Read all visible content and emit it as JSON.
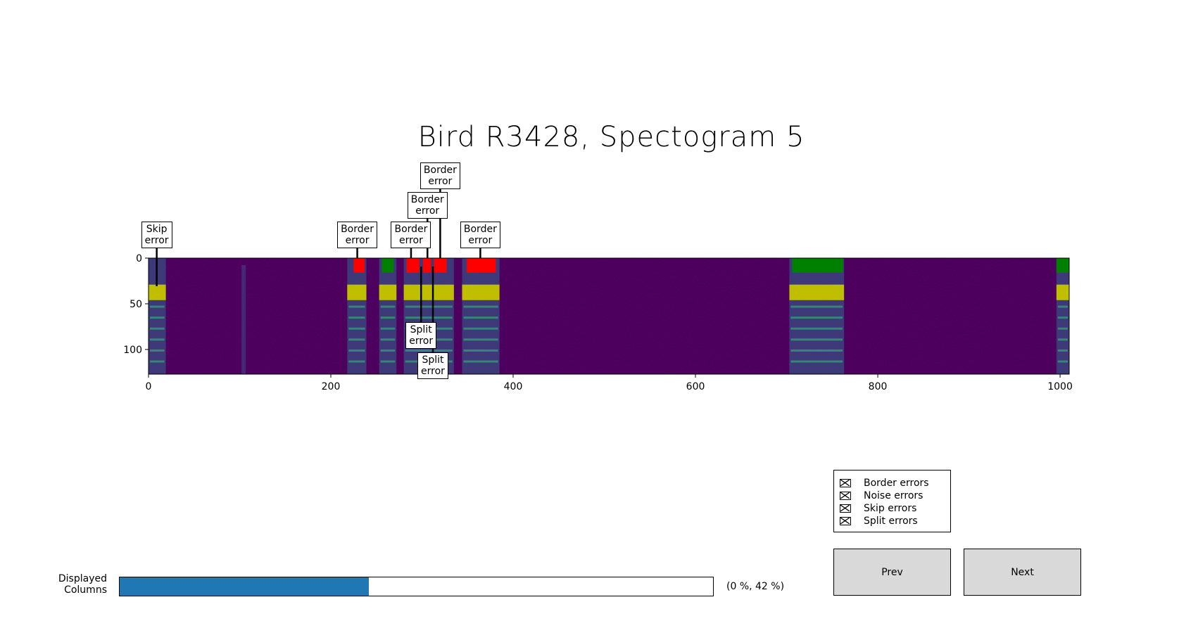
{
  "title": "Bird R3428, Spectogram 5",
  "colors": {
    "border_error": "#ff0000",
    "correct": "#008000",
    "segment": "#bfbf00",
    "background_low": "#440154",
    "highlight": "#35b779",
    "slider_fill": "#1f77b4"
  },
  "axes": {
    "x_ticks": [
      "0",
      "200",
      "400",
      "600",
      "800",
      "1000"
    ],
    "y_ticks": [
      "0",
      "50",
      "100"
    ],
    "xlim": [
      0,
      1010
    ],
    "ylim": [
      127,
      0
    ]
  },
  "chart_data": {
    "type": "heatmap",
    "title": "Bird R3428, Spectogram 5",
    "xlim": [
      0,
      1010
    ],
    "ylim": [
      127,
      0
    ],
    "label_bars": [
      {
        "start": 225,
        "end": 237,
        "status": "border_error"
      },
      {
        "start": 256,
        "end": 269,
        "status": "correct"
      },
      {
        "start": 283,
        "end": 297,
        "status": "border_error"
      },
      {
        "start": 301,
        "end": 310,
        "status": "border_error"
      },
      {
        "start": 313,
        "end": 327,
        "status": "border_error"
      },
      {
        "start": 349,
        "end": 381,
        "status": "border_error"
      },
      {
        "start": 706,
        "end": 762,
        "status": "correct"
      },
      {
        "start": 996,
        "end": 1010,
        "status": "correct"
      }
    ],
    "segment_bars": [
      {
        "start": 0,
        "end": 19
      },
      {
        "start": 218,
        "end": 239
      },
      {
        "start": 253,
        "end": 272
      },
      {
        "start": 280,
        "end": 335
      },
      {
        "start": 344,
        "end": 385
      },
      {
        "start": 703,
        "end": 763
      },
      {
        "start": 996,
        "end": 1010
      }
    ]
  },
  "annotations": [
    {
      "text": "Skip\nerror",
      "x": 9,
      "side": "top",
      "level": 0
    },
    {
      "text": "Border\nerror",
      "x": 229,
      "side": "top",
      "level": 0
    },
    {
      "text": "Border\nerror",
      "x": 288,
      "side": "top",
      "level": 0
    },
    {
      "text": "Border\nerror",
      "x": 306,
      "side": "top",
      "level": 1
    },
    {
      "text": "Border\nerror",
      "x": 320,
      "side": "top",
      "level": 2
    },
    {
      "text": "Border\nerror",
      "x": 364,
      "side": "top",
      "level": 0
    },
    {
      "text": "Split\nerror",
      "x": 299,
      "side": "bottom",
      "level": 0
    },
    {
      "text": "Split\nerror",
      "x": 312,
      "side": "bottom",
      "level": 1
    }
  ],
  "legend": {
    "items": [
      {
        "label": "Border errors",
        "checked": true
      },
      {
        "label": "Noise errors",
        "checked": true
      },
      {
        "label": "Skip errors",
        "checked": true
      },
      {
        "label": "Split errors",
        "checked": true
      }
    ]
  },
  "buttons": {
    "prev": "Prev",
    "next": "Next"
  },
  "slider": {
    "label": "Displayed\nColumns",
    "fraction": 0.42,
    "value_text": "(0 %, 42 %)"
  }
}
